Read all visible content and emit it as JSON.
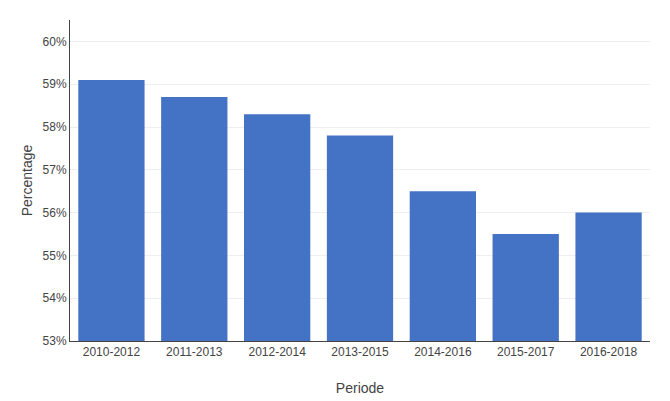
{
  "chart_data": {
    "type": "bar",
    "categories": [
      "2010-2012",
      "2011-2013",
      "2012-2014",
      "2013-2015",
      "2014-2016",
      "2015-2017",
      "2016-2018"
    ],
    "values": [
      0.591,
      0.587,
      0.583,
      0.578,
      0.565,
      0.555,
      0.56
    ],
    "color": "#4472C4",
    "xlabel": "Periode",
    "ylabel": "Percentage",
    "ylim": [
      0.53,
      0.605
    ],
    "yticks": [
      {
        "value": 0.53,
        "label": "53%"
      },
      {
        "value": 0.54,
        "label": "54%"
      },
      {
        "value": 0.55,
        "label": "55%"
      },
      {
        "value": 0.56,
        "label": "56%"
      },
      {
        "value": 0.57,
        "label": "57%"
      },
      {
        "value": 0.58,
        "label": "58%"
      },
      {
        "value": 0.59,
        "label": "59%"
      },
      {
        "value": 0.6,
        "label": "60%"
      }
    ],
    "grid": true
  }
}
